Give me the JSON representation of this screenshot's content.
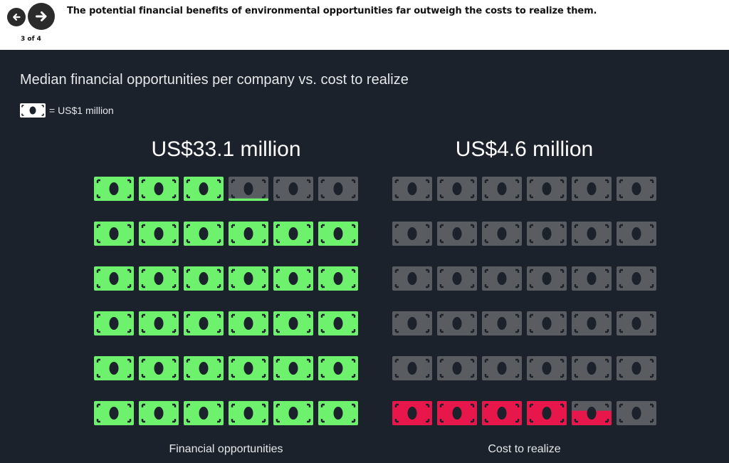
{
  "header": {
    "prev_icon": "arrow-left-icon",
    "next_icon": "arrow-right-icon",
    "pager": "3 of 4",
    "headline": "The potential financial benefits of environmental opportunities far outweigh the costs to realize them."
  },
  "chart_data": {
    "type": "pictograph",
    "title": "Median financial opportunities per company vs. cost to realize",
    "legend_icon": "banknote-icon",
    "legend_label": "= US$1 million",
    "unit_value": 1,
    "grid": {
      "rows": 6,
      "cols": 6
    },
    "fill_order": "bottom-up",
    "empty_color": "#595c60",
    "panels": [
      {
        "label": "Financial opportunities",
        "value_text": "US$33.1 million",
        "value": 33.1,
        "color": "#6ef26e"
      },
      {
        "label": "Cost to realize",
        "value_text": "US$4.6 million",
        "value": 4.6,
        "color": "#e8174b"
      }
    ]
  }
}
